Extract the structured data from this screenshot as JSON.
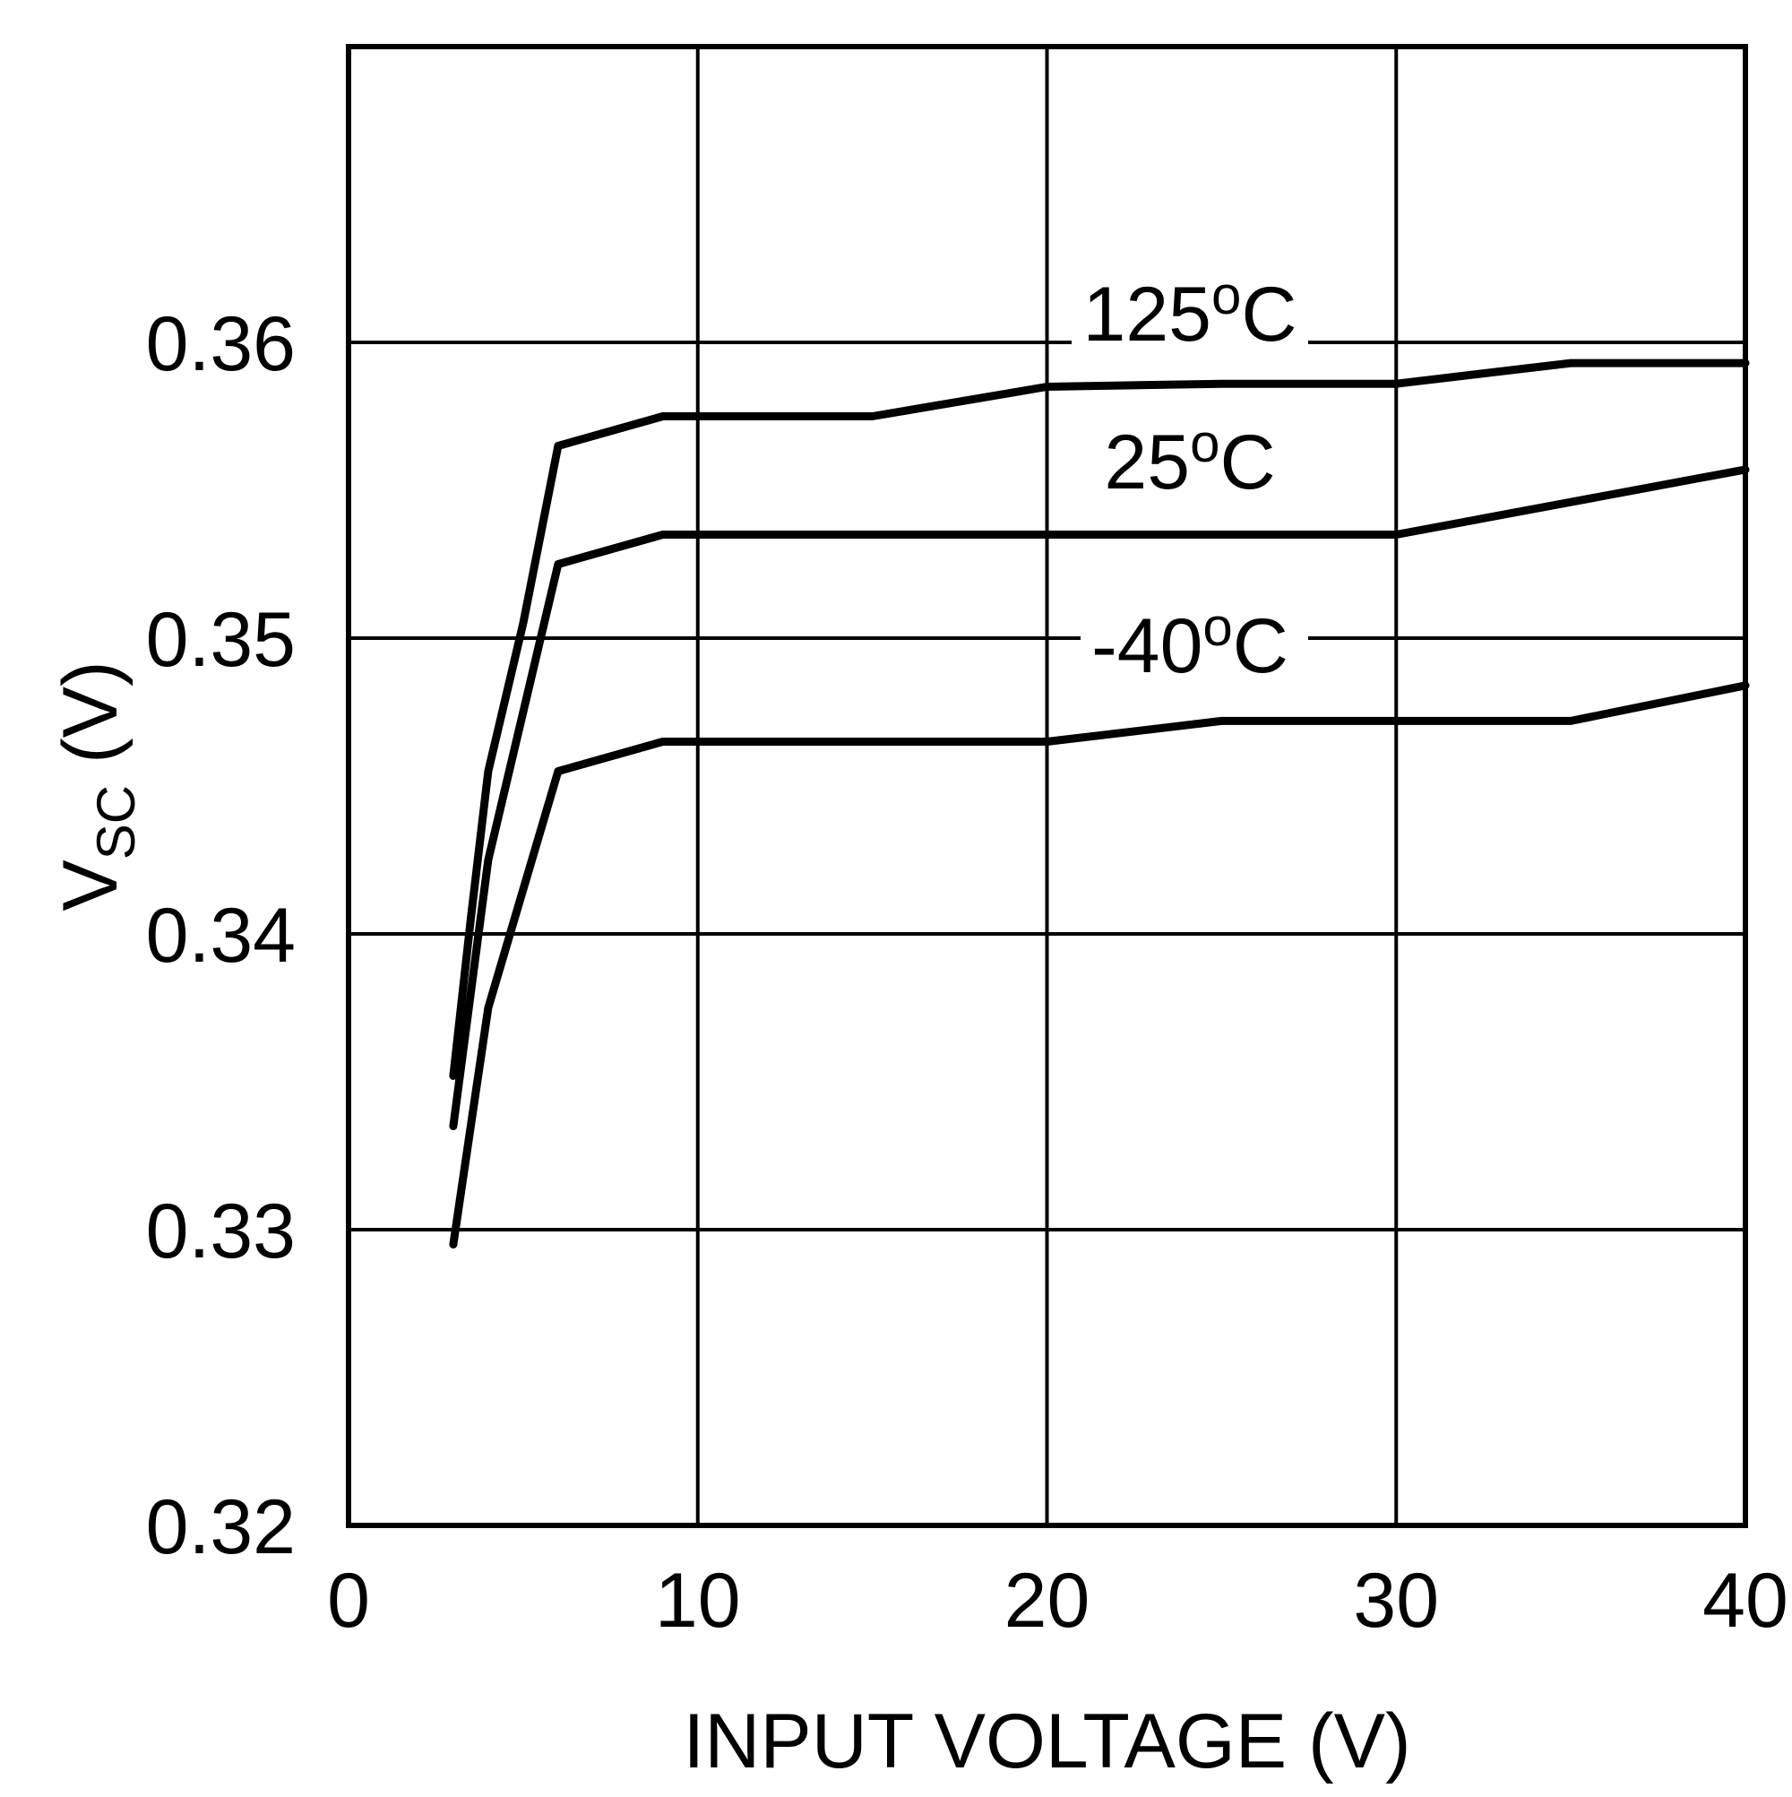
{
  "chart_data": {
    "type": "line",
    "title": "",
    "xlabel": "INPUT VOLTAGE (V)",
    "ylabel": {
      "main": "V",
      "subscript": "SC",
      "suffix": " (V)"
    },
    "xlim": [
      0,
      40
    ],
    "ylim": [
      0.32,
      0.37
    ],
    "xticks": [
      0,
      10,
      20,
      30,
      40
    ],
    "xtick_labels": [
      "0",
      "10",
      "20",
      "30",
      "40"
    ],
    "yticks": [
      0.32,
      0.33,
      0.34,
      0.35,
      0.36
    ],
    "ytick_labels": [
      "0.32",
      "0.33",
      "0.34",
      "0.35",
      "0.36"
    ],
    "grid": true,
    "line_color": "#000000",
    "series": [
      {
        "name": "125ºC",
        "label_parts": [
          "125",
          "o",
          "C"
        ],
        "x": [
          3,
          3.5,
          4,
          5,
          6,
          9,
          15,
          20,
          25,
          30,
          35,
          40
        ],
        "y": [
          0.3352,
          0.3405,
          0.3455,
          0.3505,
          0.3565,
          0.3575,
          0.3575,
          0.3585,
          0.3586,
          0.3586,
          0.3593,
          0.3593
        ]
      },
      {
        "name": "25ºC",
        "label_parts": [
          "25",
          "o",
          "C"
        ],
        "x": [
          3,
          4,
          5,
          6,
          9,
          15,
          20,
          25,
          30,
          35,
          40
        ],
        "y": [
          0.3335,
          0.3425,
          0.3475,
          0.3525,
          0.3535,
          0.3535,
          0.3535,
          0.3535,
          0.3535,
          0.3546,
          0.3557
        ]
      },
      {
        "name": "-40ºC",
        "label_parts": [
          "-40",
          "o",
          "C"
        ],
        "x": [
          3,
          4,
          6,
          9,
          15,
          20,
          25,
          30,
          35,
          40
        ],
        "y": [
          0.3295,
          0.3375,
          0.3455,
          0.3465,
          0.3465,
          0.3465,
          0.3472,
          0.3472,
          0.3472,
          0.3484
        ]
      }
    ]
  }
}
